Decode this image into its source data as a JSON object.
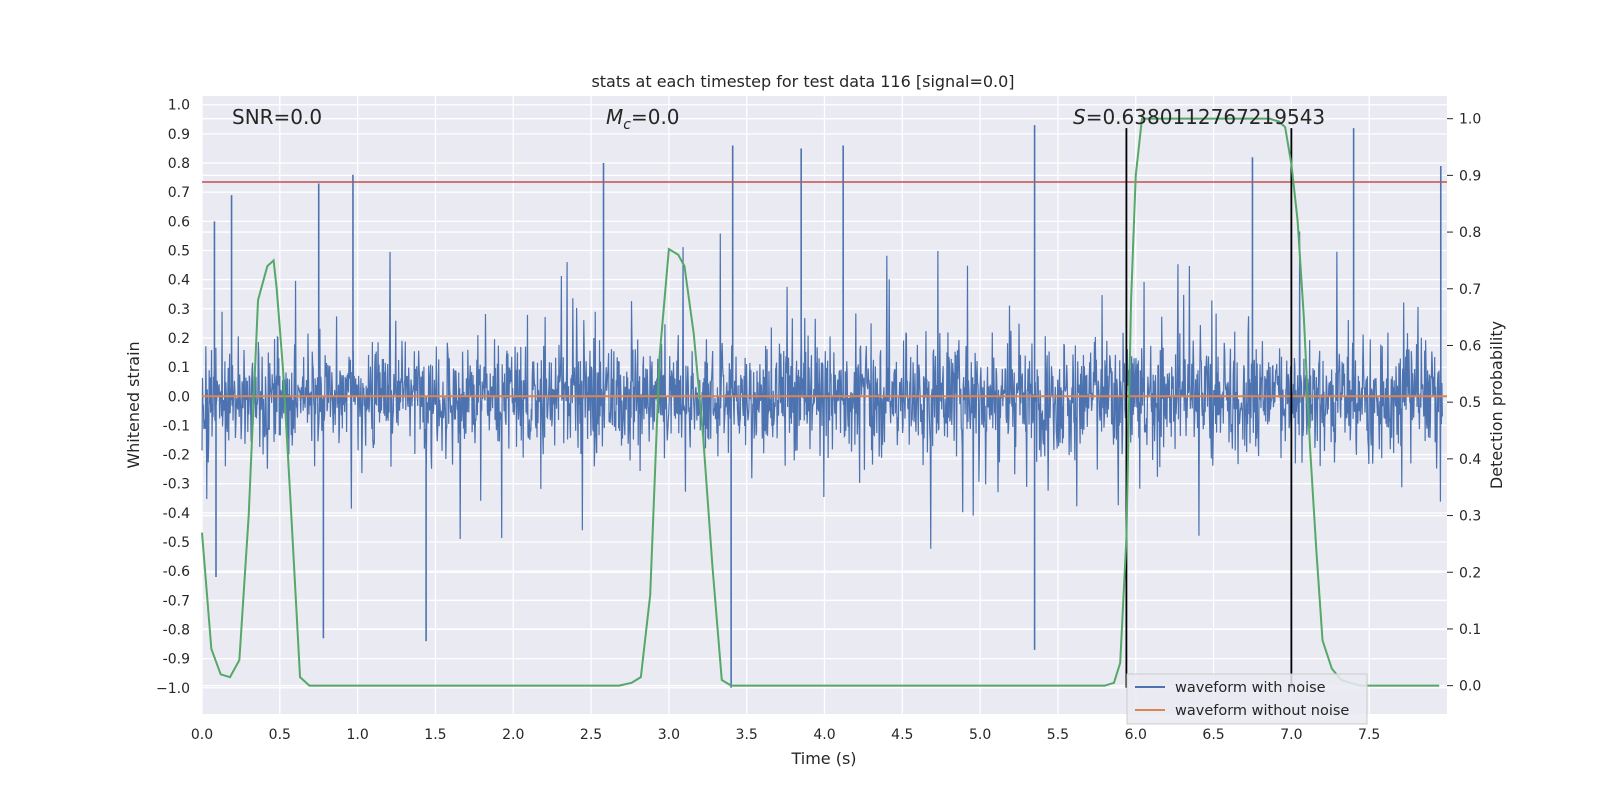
{
  "chart_data": {
    "type": "line",
    "title": "stats at each timestep for test data 116 [signal=0.0]",
    "xlabel": "Time (s)",
    "ylabel": "Whitened strain",
    "y2label": "Detection probability",
    "xlim": [
      0.0,
      8.0
    ],
    "ylim": [
      -1.09,
      1.03
    ],
    "y2lim": [
      -0.05,
      1.04
    ],
    "xticks": [
      "0.0",
      "0.5",
      "1.0",
      "1.5",
      "2.0",
      "2.5",
      "3.0",
      "3.5",
      "4.0",
      "4.5",
      "5.0",
      "5.5",
      "6.0",
      "6.5",
      "7.0",
      "7.5"
    ],
    "yticks": [
      "1.0",
      "0.9",
      "0.8",
      "0.7",
      "0.6",
      "0.5",
      "0.4",
      "0.3",
      "0.2",
      "0.1",
      "0.0",
      "-0.1",
      "-0.2",
      "-0.3",
      "-0.4",
      "-0.5",
      "-0.6",
      "-0.7",
      "-0.8",
      "-0.9",
      "−1.0"
    ],
    "y2ticks": [
      "0.0",
      "0.1",
      "0.2",
      "0.3",
      "0.4",
      "0.5",
      "0.6",
      "0.7",
      "0.8",
      "0.9",
      "1.0"
    ],
    "annotations": {
      "snr": "SNR=0.0",
      "mc": "=0.0",
      "mc_symbol": "M",
      "mc_sub": "c",
      "s": "=0.6380112767219543",
      "s_symbol": "S"
    },
    "threshold": 0.735,
    "vlines": [
      5.94,
      7.0
    ],
    "series": [
      {
        "name": "waveform with noise",
        "color": "#4c72b0",
        "axis": "left",
        "description": "whitened noise, amplitude roughly within +-0.5 with spikes up to +-0.9 and a minimum of -1.0 near t=3.4 s",
        "spikes": [
          {
            "x": 0.08,
            "y": 0.6
          },
          {
            "x": 0.09,
            "y": -0.62
          },
          {
            "x": 0.19,
            "y": 0.69
          },
          {
            "x": 0.75,
            "y": 0.73
          },
          {
            "x": 0.78,
            "y": -0.83
          },
          {
            "x": 0.97,
            "y": 0.76
          },
          {
            "x": 1.44,
            "y": -0.84
          },
          {
            "x": 2.58,
            "y": 0.8
          },
          {
            "x": 3.41,
            "y": 0.86
          },
          {
            "x": 3.4,
            "y": -1.0
          },
          {
            "x": 3.85,
            "y": 0.85
          },
          {
            "x": 4.12,
            "y": 0.86
          },
          {
            "x": 5.35,
            "y": 0.93
          },
          {
            "x": 5.35,
            "y": -0.87
          },
          {
            "x": 6.75,
            "y": 0.82
          },
          {
            "x": 7.4,
            "y": 0.92
          },
          {
            "x": 7.96,
            "y": 0.79
          }
        ]
      },
      {
        "name": "waveform without noise",
        "color": "#dd8452",
        "axis": "left",
        "x": [
          0.0,
          8.0
        ],
        "y": [
          0.0,
          0.0
        ]
      },
      {
        "name": "detection probability",
        "color": "#55a868",
        "axis": "right",
        "x": [
          0.0,
          0.06,
          0.12,
          0.18,
          0.24,
          0.3,
          0.36,
          0.42,
          0.46,
          0.48,
          0.52,
          0.57,
          0.63,
          0.69,
          2.68,
          2.76,
          2.82,
          2.88,
          2.94,
          3.0,
          3.06,
          3.1,
          3.16,
          3.22,
          3.28,
          3.34,
          3.4,
          5.8,
          5.86,
          5.9,
          5.94,
          5.97,
          6.0,
          6.04,
          6.1,
          6.86,
          6.92,
          6.96,
          7.0,
          7.04,
          7.08,
          7.12,
          7.16,
          7.2,
          7.26,
          7.32,
          7.38,
          7.44,
          7.5,
          7.95
        ],
        "y": [
          0.27,
          0.065,
          0.02,
          0.015,
          0.045,
          0.3,
          0.68,
          0.74,
          0.75,
          0.7,
          0.56,
          0.32,
          0.015,
          0.0,
          0.0,
          0.005,
          0.015,
          0.16,
          0.58,
          0.77,
          0.76,
          0.74,
          0.62,
          0.44,
          0.21,
          0.01,
          0.0,
          0.0,
          0.005,
          0.04,
          0.26,
          0.68,
          0.9,
          1.0,
          1.0,
          1.0,
          0.995,
          0.985,
          0.92,
          0.82,
          0.65,
          0.42,
          0.24,
          0.08,
          0.03,
          0.01,
          0.005,
          0.0,
          0.0,
          0.0
        ]
      }
    ],
    "legend": {
      "position": "lower-right",
      "entries": [
        {
          "label": "waveform with noise",
          "color": "#4c72b0"
        },
        {
          "label": "waveform without noise",
          "color": "#dd8452"
        }
      ]
    },
    "colors": {
      "background": "#eaeaf2",
      "grid": "#ffffff",
      "threshold": "#c44e52",
      "vline": "#000000"
    }
  }
}
